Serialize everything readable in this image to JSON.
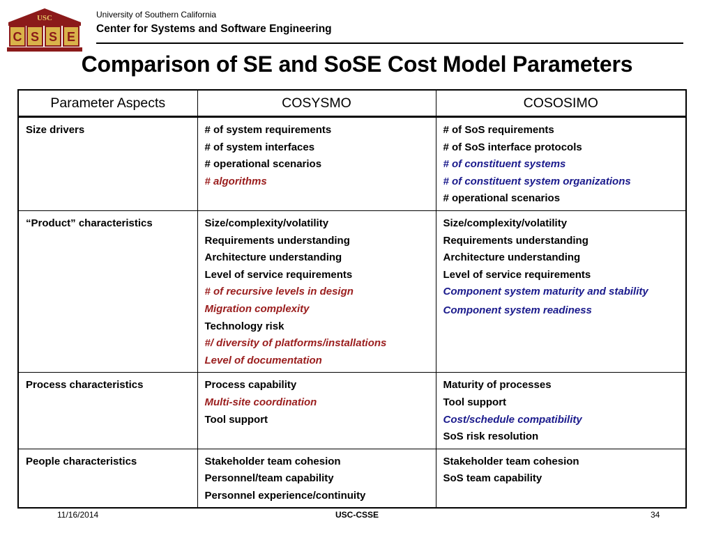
{
  "header": {
    "logo_top_text": "USC",
    "logo_letters": [
      "C",
      "S",
      "S",
      "E"
    ],
    "org_line1": "University of Southern California",
    "org_line2": "Center for Systems and Software Engineering"
  },
  "title": "Comparison of SE and SoSE Cost Model Parameters",
  "table": {
    "headers": [
      "Parameter Aspects",
      "COSYSMO",
      "COSOSIMO"
    ],
    "rows": [
      {
        "aspect": "Size drivers",
        "cosysmo": [
          {
            "text": "# of system requirements",
            "style": "normal"
          },
          {
            "text": "# of system interfaces",
            "style": "normal"
          },
          {
            "text": "# operational scenarios",
            "style": "normal"
          },
          {
            "text": "# algorithms",
            "style": "red"
          }
        ],
        "cososimo": [
          {
            "text": "# of SoS requirements",
            "style": "normal"
          },
          {
            "text": "# of SoS interface protocols",
            "style": "normal"
          },
          {
            "text": "# of constituent systems",
            "style": "blue"
          },
          {
            "text": "# of constituent system organizations",
            "style": "blue"
          },
          {
            "text": "# operational scenarios",
            "style": "normal"
          }
        ]
      },
      {
        "aspect": "“Product” characteristics",
        "cosysmo": [
          {
            "text": "Size/complexity/volatility",
            "style": "normal"
          },
          {
            "text": "Requirements understanding",
            "style": "normal"
          },
          {
            "text": "Architecture understanding",
            "style": "normal"
          },
          {
            "text": "Level of service requirements",
            "style": "normal"
          },
          {
            "text": "# of recursive levels in design",
            "style": "red"
          },
          {
            "text": "Migration complexity",
            "style": "red"
          },
          {
            "text": "Technology risk",
            "style": "normal"
          },
          {
            "text": "#/ diversity of platforms/installations",
            "style": "red"
          },
          {
            "text": "Level of documentation",
            "style": "red"
          }
        ],
        "cososimo": [
          {
            "text": "Size/complexity/volatility",
            "style": "normal"
          },
          {
            "text": "Requirements understanding",
            "style": "normal"
          },
          {
            "text": "Architecture understanding",
            "style": "normal"
          },
          {
            "text": "Level of service requirements",
            "style": "normal"
          },
          {
            "text": "Component system maturity and stability",
            "style": "blue"
          },
          {
            "text": "Component system readiness",
            "style": "blue"
          }
        ]
      },
      {
        "aspect": "Process characteristics",
        "cosysmo": [
          {
            "text": "Process capability",
            "style": "normal"
          },
          {
            "text": "Multi-site coordination",
            "style": "red"
          },
          {
            "text": "Tool support",
            "style": "normal"
          }
        ],
        "cososimo": [
          {
            "text": "Maturity of processes",
            "style": "normal"
          },
          {
            "text": "Tool support",
            "style": "normal"
          },
          {
            "text": "Cost/schedule compatibility",
            "style": "blue"
          },
          {
            "text": "SoS risk resolution",
            "style": "normal"
          }
        ]
      },
      {
        "aspect": "People characteristics",
        "cosysmo": [
          {
            "text": "Stakeholder team cohesion",
            "style": "normal"
          },
          {
            "text": "Personnel/team capability",
            "style": "normal"
          },
          {
            "text": "Personnel experience/continuity",
            "style": "normal"
          }
        ],
        "cososimo": [
          {
            "text": "Stakeholder team cohesion",
            "style": "normal"
          },
          {
            "text": "SoS team capability",
            "style": "normal"
          }
        ]
      }
    ]
  },
  "footer": {
    "date": "11/16/2014",
    "center": "USC-CSSE",
    "page": "34"
  },
  "colors": {
    "cosysmo_added": "#9a1d1d",
    "cososimo_added": "#1a1a8c",
    "logo_maroon": "#8b1a1a",
    "logo_gold": "#d9b24a"
  }
}
